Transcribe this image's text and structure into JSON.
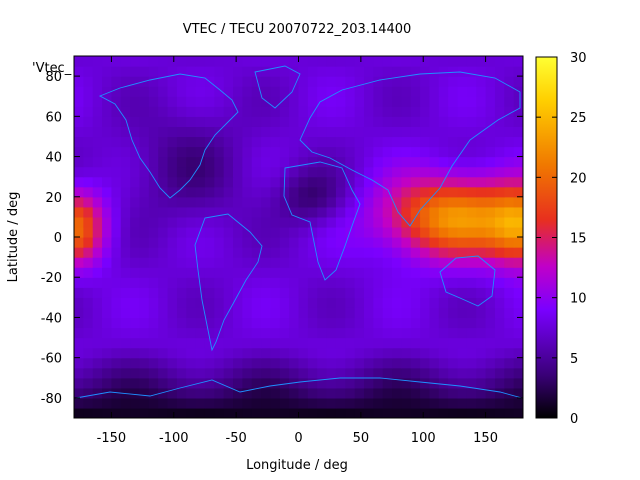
{
  "chart_data": {
    "type": "heatmap",
    "title": "VTEC / TECU 20070722_203.14400",
    "key_label": "'Vtec_",
    "xlabel": "Longitude / deg",
    "ylabel": "Latitude / deg",
    "xlim": [
      -180,
      180
    ],
    "ylim": [
      -90,
      90
    ],
    "x_ticks": [
      -150,
      -100,
      -50,
      0,
      50,
      100,
      150
    ],
    "y_ticks": [
      -80,
      -60,
      -40,
      -20,
      0,
      20,
      40,
      60,
      80
    ],
    "colorbar": {
      "range": [
        0,
        30
      ],
      "ticks": [
        0,
        5,
        10,
        15,
        20,
        25,
        30
      ],
      "palette": [
        "#000000",
        "#3a0078",
        "#7a00ff",
        "#c000c8",
        "#e8301e",
        "#f07800",
        "#ffcf00",
        "#ffff33"
      ]
    },
    "grid": false,
    "legend": "top-left",
    "overlay": "coastlines",
    "overlay_color": "#1e90ff",
    "features": [
      {
        "name": "east-asia-pacific-anomaly",
        "lon": 125,
        "lat": 10,
        "peak_tecu": 23
      },
      {
        "name": "central-pacific-anomaly",
        "lon": -175,
        "lat": 5,
        "peak_tecu": 20
      },
      {
        "name": "south-atlantic-trough",
        "lon": 10,
        "lat": 20,
        "peak_tecu": 4
      },
      {
        "name": "antarctic-low",
        "lon": 0,
        "lat": -85,
        "peak_tecu": 1
      }
    ]
  }
}
